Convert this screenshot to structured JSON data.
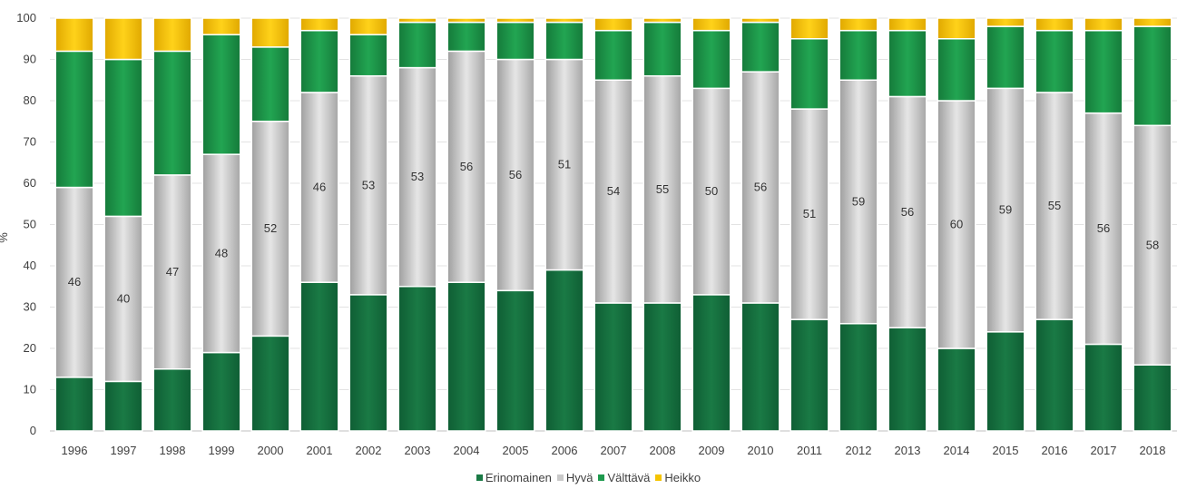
{
  "chart_data": {
    "type": "bar",
    "stacked": true,
    "categories": [
      "1996",
      "1997",
      "1998",
      "1999",
      "2000",
      "2001",
      "2002",
      "2003",
      "2004",
      "2005",
      "2006",
      "2007",
      "2008",
      "2009",
      "2010",
      "2011",
      "2012",
      "2013",
      "2014",
      "2015",
      "2016",
      "2017",
      "2018"
    ],
    "series": [
      {
        "name": "Erinomainen",
        "color": "#1a7a45",
        "values": [
          13,
          12,
          15,
          19,
          23,
          36,
          33,
          35,
          36,
          34,
          39,
          31,
          31,
          33,
          31,
          27,
          26,
          25,
          20,
          24,
          27,
          21,
          16
        ]
      },
      {
        "name": "Hyvä",
        "color": "#c9c9c9",
        "values": [
          46,
          40,
          47,
          48,
          52,
          46,
          53,
          53,
          56,
          56,
          51,
          54,
          55,
          50,
          56,
          51,
          59,
          56,
          60,
          59,
          55,
          56,
          58
        ]
      },
      {
        "name": "Välttävä",
        "color": "#1e9a4e",
        "values": [
          33,
          38,
          30,
          29,
          18,
          15,
          10,
          11,
          7,
          9,
          9,
          12,
          13,
          14,
          12,
          17,
          12,
          16,
          15,
          15,
          15,
          20,
          24
        ]
      },
      {
        "name": "Heikko",
        "color": "#f5c400",
        "values": [
          8,
          10,
          8,
          4,
          7,
          3,
          4,
          1,
          1,
          1,
          1,
          3,
          1,
          3,
          1,
          5,
          3,
          3,
          5,
          2,
          3,
          3,
          2
        ]
      }
    ],
    "data_labels": {
      "series": "Hyvä"
    },
    "xlabel": "",
    "ylabel": "%",
    "ylim": [
      0,
      100
    ],
    "yticks": [
      "0",
      "10",
      "20",
      "30",
      "40",
      "50",
      "60",
      "70",
      "80",
      "90",
      "100"
    ],
    "grid": true,
    "legend": "bottom"
  }
}
